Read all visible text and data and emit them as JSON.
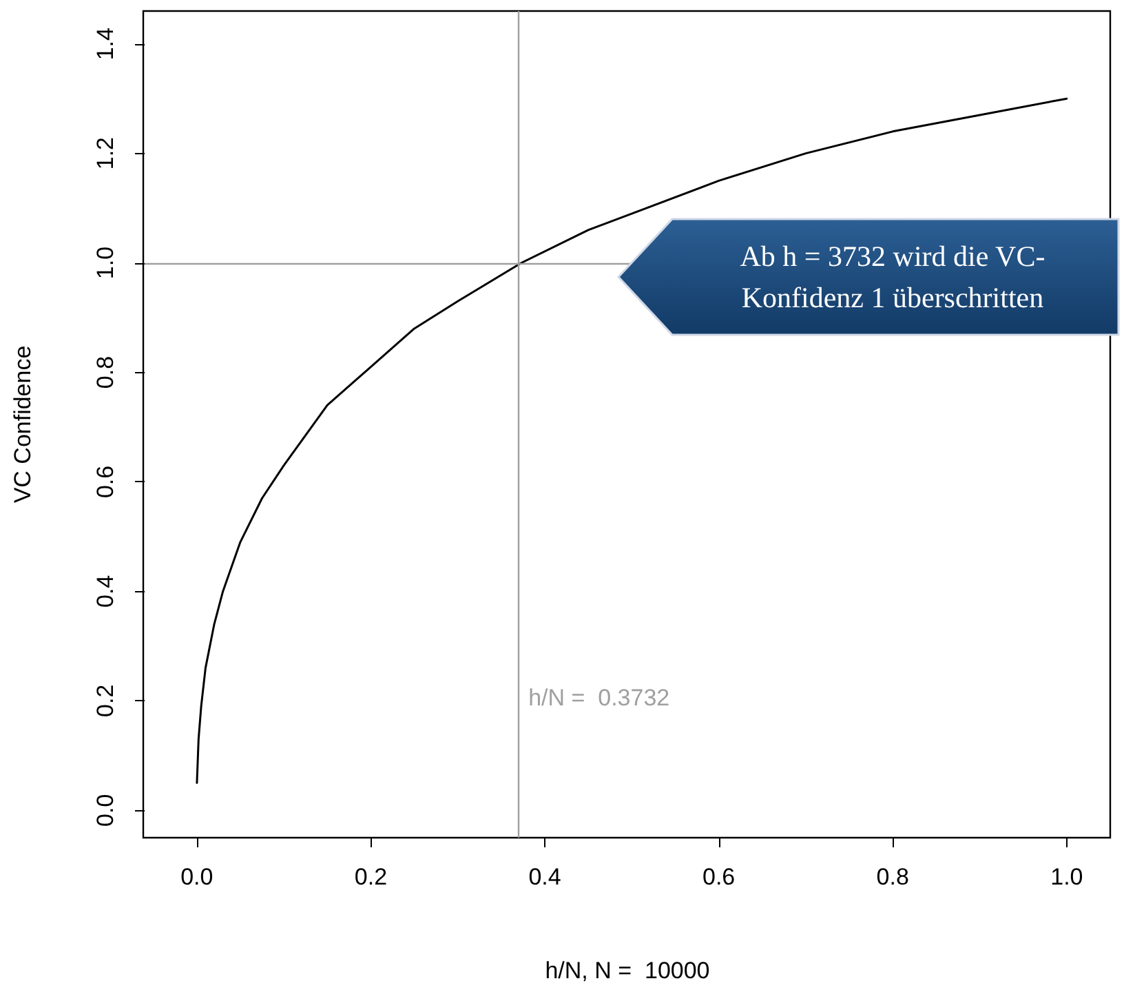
{
  "chart_data": {
    "type": "line",
    "xlabel": "h/N, N =  10000",
    "ylabel": "VC Confidence",
    "x": [
      0.0001,
      0.002,
      0.005,
      0.01,
      0.02,
      0.03,
      0.05,
      0.075,
      0.1,
      0.15,
      0.2,
      0.25,
      0.3,
      0.3732,
      0.45,
      0.5,
      0.6,
      0.7,
      0.8,
      0.9,
      1.0
    ],
    "series": [
      {
        "color": "#000000",
        "values": [
          0.05,
          0.13,
          0.19,
          0.26,
          0.34,
          0.4,
          0.49,
          0.57,
          0.63,
          0.74,
          0.81,
          0.88,
          0.93,
          1.0,
          1.06,
          1.09,
          1.15,
          1.2,
          1.24,
          1.27,
          1.3
        ]
      }
    ],
    "xlim": [
      -0.06,
      1.05
    ],
    "ylim": [
      -0.05,
      1.46
    ],
    "xticks": [
      {
        "value": 0,
        "label": "0.0"
      },
      {
        "value": 0.2,
        "label": "0.2"
      },
      {
        "value": 0.4,
        "label": "0.4"
      },
      {
        "value": 0.6,
        "label": "0.6"
      },
      {
        "value": 0.8,
        "label": "0.8"
      },
      {
        "value": 1,
        "label": "1.0"
      }
    ],
    "yticks": [
      {
        "value": 0,
        "label": "0.0"
      },
      {
        "value": 0.2,
        "label": "0.2"
      },
      {
        "value": 0.4,
        "label": "0.4"
      },
      {
        "value": 0.6,
        "label": "0.6"
      },
      {
        "value": 0.8,
        "label": "0.8"
      },
      {
        "value": 1,
        "label": "1.0"
      },
      {
        "value": 1.2,
        "label": "1.2"
      },
      {
        "value": 1.4,
        "label": "1.4"
      }
    ],
    "ref_lines": [
      {
        "axis": "x",
        "value": 0.3732,
        "label": "h/N =  0.3732",
        "color": "#a0a0a0"
      },
      {
        "axis": "y",
        "value": 1.0,
        "color": "#a0a0a0"
      }
    ],
    "annotations": [
      "Ab h = 3732 wird die VC-Konfidenz 1 überschritten"
    ],
    "grid": false,
    "marker": "none",
    "line_style": "solid"
  }
}
